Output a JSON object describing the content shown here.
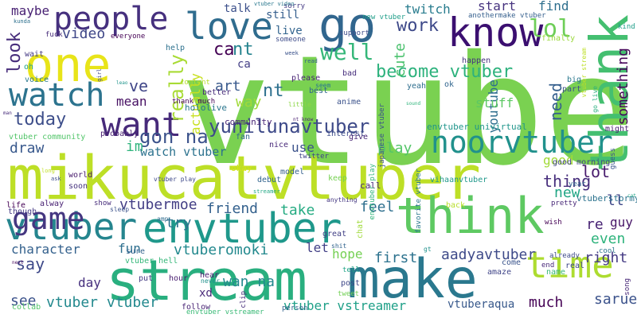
{
  "words": [
    {
      "text": "vtuber",
      "color": "#7ad151"
    },
    {
      "text": "mikucatvtuber",
      "color": "#bddf26"
    },
    {
      "text": "stream",
      "color": "#29af7f"
    },
    {
      "text": "make",
      "color": "#2a788e"
    },
    {
      "text": "think",
      "color": "#5ec962"
    },
    {
      "text": "envtuber",
      "color": "#1f988b"
    },
    {
      "text": "vtuber",
      "color": "#25858e"
    },
    {
      "text": "one",
      "color": "#e8e419"
    },
    {
      "text": "thank",
      "color": "#44bf70"
    },
    {
      "text": "go",
      "color": "#31668e"
    },
    {
      "text": "love",
      "color": "#2f6c8e"
    },
    {
      "text": "people",
      "color": "#46307e"
    },
    {
      "text": "know",
      "color": "#3b0f70"
    },
    {
      "text": "want",
      "color": "#472a7a"
    },
    {
      "text": "watch",
      "color": "#2c738e"
    },
    {
      "text": "time",
      "color": "#addc30"
    },
    {
      "text": "game",
      "color": "#453781"
    },
    {
      "text": "noorvtuber",
      "color": "#21918c"
    },
    {
      "text": "yunilunavtuber",
      "color": "#3e4a89"
    },
    {
      "text": "lol",
      "color": "#6ece58"
    },
    {
      "text": "work",
      "color": "#3e4989"
    },
    {
      "text": "well",
      "color": "#35b779"
    },
    {
      "text": "become vtuber",
      "color": "#2db27d"
    },
    {
      "text": "look",
      "color": "#472d7b"
    },
    {
      "text": "gon na",
      "color": "#3b528b"
    },
    {
      "text": "really",
      "color": "#a8db34"
    },
    {
      "text": "today",
      "color": "#3d4e8a"
    },
    {
      "text": "ca",
      "color": "#440154"
    },
    {
      "text": "nt",
      "color": "#25838e"
    },
    {
      "text": "nt",
      "color": "#2d708e"
    },
    {
      "text": "art",
      "color": "#38598c"
    },
    {
      "text": "way",
      "color": "#a0da39"
    },
    {
      "text": "ve",
      "color": "#404688"
    },
    {
      "text": "mean",
      "color": "#471063"
    },
    {
      "text": "actually",
      "color": "#c8e020"
    },
    {
      "text": "cute",
      "color": "#4ac16d"
    },
    {
      "text": "need",
      "color": "#355f8d"
    },
    {
      "text": "something",
      "color": "#450559"
    },
    {
      "text": "youtube",
      "color": "#2e6e8e"
    },
    {
      "text": "stuff",
      "color": "#5cc863"
    },
    {
      "text": "draw",
      "color": "#38588c"
    },
    {
      "text": "im",
      "color": "#2fb47c"
    },
    {
      "text": "watch vtuber",
      "color": "#2c728e"
    },
    {
      "text": "vtubermoe",
      "color": "#433e85"
    },
    {
      "text": "friend",
      "color": "#34618d"
    },
    {
      "text": "play",
      "color": "#54c568"
    },
    {
      "text": "use",
      "color": "#3b528b"
    },
    {
      "text": "thing",
      "color": "#472e7c"
    },
    {
      "text": "lot",
      "color": "#481b6d"
    },
    {
      "text": "new",
      "color": "#21a685"
    },
    {
      "text": "ll",
      "color": "#3f4889"
    },
    {
      "text": "good",
      "color": "#a2da37"
    },
    {
      "text": "even",
      "color": "#2eb37c"
    },
    {
      "text": "re",
      "color": "#482374"
    },
    {
      "text": "guy",
      "color": "#481668"
    },
    {
      "text": "right",
      "color": "#443a83"
    },
    {
      "text": "aadyavtuber",
      "color": "#3e4a89"
    },
    {
      "text": "first",
      "color": "#2c728e"
    },
    {
      "text": "hope",
      "color": "#75d054"
    },
    {
      "text": "let",
      "color": "#424086"
    },
    {
      "text": "vtuberomoki",
      "color": "#23898e"
    },
    {
      "text": "try",
      "color": "#2d708e"
    },
    {
      "text": "fun",
      "color": "#2e6f8e"
    },
    {
      "text": "character",
      "color": "#34618d"
    },
    {
      "text": "say",
      "color": "#3e4989"
    },
    {
      "text": "day",
      "color": "#46307e"
    },
    {
      "text": "see",
      "color": "#3b528b"
    },
    {
      "text": "vtuber vtuber",
      "color": "#23898e"
    },
    {
      "text": "wan na",
      "color": "#23898e"
    },
    {
      "text": "xd",
      "color": "#482878"
    },
    {
      "text": "vtuber vstreamer",
      "color": "#1fa088"
    },
    {
      "text": "much",
      "color": "#440154"
    },
    {
      "text": "saruei",
      "color": "#3b528b"
    },
    {
      "text": "vtuberaqua",
      "color": "#38598c"
    },
    {
      "text": "take",
      "color": "#25ab82"
    },
    {
      "text": "feel",
      "color": "#2e6f8e"
    },
    {
      "text": "video",
      "color": "#3f4788"
    },
    {
      "text": "maybe",
      "color": "#482173"
    },
    {
      "text": "start",
      "color": "#46337f"
    },
    {
      "text": "find",
      "color": "#2e6f8e"
    },
    {
      "text": "twitch",
      "color": "#287c8e"
    },
    {
      "text": "talk",
      "color": "#3c508b"
    },
    {
      "text": "still",
      "color": "#355e8d"
    },
    {
      "text": "live",
      "color": "#32648e"
    },
    {
      "text": "ca",
      "color": "#433e85"
    },
    {
      "text": "envtuber univirtual",
      "color": "#1f958b"
    },
    {
      "text": "vtuberstormy",
      "color": "#2c738e"
    },
    {
      "text": "hololive",
      "color": "#2a768e"
    },
    {
      "text": "community",
      "color": "#482576"
    },
    {
      "text": "vtuber community",
      "color": "#52c569"
    },
    {
      "text": "vtuber hell",
      "color": "#35b779"
    },
    {
      "text": "please",
      "color": "#482475"
    },
    {
      "text": "best",
      "color": "#31678e"
    },
    {
      "text": "anime",
      "color": "#3b528b"
    },
    {
      "text": "interest",
      "color": "#3d4d8a"
    },
    {
      "text": "twitter",
      "color": "#414487"
    },
    {
      "text": "probably",
      "color": "#481f70"
    },
    {
      "text": "model",
      "color": "#355f8d"
    },
    {
      "text": "debut",
      "color": "#32648e"
    },
    {
      "text": "okay",
      "color": "#d5e21a"
    },
    {
      "text": "call",
      "color": "#482677"
    },
    {
      "text": "great",
      "color": "#424086"
    },
    {
      "text": "fuck",
      "color": "#472c7a"
    },
    {
      "text": "everyone",
      "color": "#440154"
    },
    {
      "text": "wait",
      "color": "#443983"
    },
    {
      "text": "oh",
      "color": "#1fa088"
    },
    {
      "text": "voice",
      "color": "#2a788e"
    },
    {
      "text": "help",
      "color": "#2d718e"
    },
    {
      "text": "better",
      "color": "#472c7a"
    },
    {
      "text": "content",
      "color": "#b5de2b"
    },
    {
      "text": "thank much",
      "color": "#440154"
    },
    {
      "text": "fan",
      "color": "#30698e"
    },
    {
      "text": "nice",
      "color": "#482979"
    },
    {
      "text": "give",
      "color": "#482576"
    },
    {
      "text": "sorry",
      "color": "#443983"
    },
    {
      "text": "support",
      "color": "#3e4c8a"
    },
    {
      "text": "someone",
      "color": "#3e4c8a"
    },
    {
      "text": "new vtuber",
      "color": "#1f9e89"
    },
    {
      "text": "anothermake vtuber",
      "color": "#355f8d"
    },
    {
      "text": "finally",
      "color": "#9bd93c"
    },
    {
      "text": "happen",
      "color": "#46337f"
    },
    {
      "text": "big",
      "color": "#2a788e"
    },
    {
      "text": "part",
      "color": "#3d4e8a"
    },
    {
      "text": "yeah",
      "color": "#2e6e8e"
    },
    {
      "text": "ok",
      "color": "#31668e"
    },
    {
      "text": "bad",
      "color": "#472f7d"
    },
    {
      "text": "japanese vtuber",
      "color": "#3b528b"
    },
    {
      "text": "favorite vtuber",
      "color": "#2a778e"
    },
    {
      "text": "vihaanvtuber",
      "color": "#1f988b"
    },
    {
      "text": "envtuber play",
      "color": "#31b57b"
    },
    {
      "text": "hour",
      "color": "#481d6f"
    },
    {
      "text": "put",
      "color": "#443a83"
    },
    {
      "text": "follow",
      "color": "#482374"
    },
    {
      "text": "envtuber vstreamer",
      "color": "#3aba76"
    },
    {
      "text": "person",
      "color": "#33638d"
    },
    {
      "text": "post",
      "color": "#3f4889"
    },
    {
      "text": "tweet",
      "color": "#73d056"
    },
    {
      "text": "amaze",
      "color": "#404588"
    },
    {
      "text": "name",
      "color": "#38b977"
    },
    {
      "text": "come",
      "color": "#3a548c"
    },
    {
      "text": "end",
      "color": "#482878"
    },
    {
      "text": "real",
      "color": "#3f4889"
    },
    {
      "text": "already",
      "color": "#3e4989"
    },
    {
      "text": "might",
      "color": "#482071"
    },
    {
      "text": "guess",
      "color": "#3a548c"
    },
    {
      "text": "year",
      "color": "#31668e"
    },
    {
      "text": "song",
      "color": "#482878"
    },
    {
      "text": "collab",
      "color": "#52c569"
    },
    {
      "text": "life",
      "color": "#440154"
    },
    {
      "text": "though",
      "color": "#443983"
    },
    {
      "text": "alway",
      "color": "#482173"
    },
    {
      "text": "world",
      "color": "#481a6c"
    },
    {
      "text": "soon",
      "color": "#46327e"
    },
    {
      "text": "show",
      "color": "#472d7b"
    },
    {
      "text": "sure",
      "color": "#33638d"
    },
    {
      "text": "back",
      "color": "#b8de29"
    },
    {
      "text": "kind",
      "color": "#1f9e89"
    },
    {
      "text": "good morning",
      "color": "#414487"
    },
    {
      "text": "pretty",
      "color": "#482878"
    },
    {
      "text": "cool",
      "color": "#2b758e"
    },
    {
      "text": "wish",
      "color": "#440154"
    },
    {
      "text": "clip",
      "color": "#472d7b"
    },
    {
      "text": "never",
      "color": "#21918c"
    },
    {
      "text": "hear",
      "color": "#481d6f"
    },
    {
      "text": "keep",
      "color": "#77d153"
    },
    {
      "text": "chat",
      "color": "#9fda3a"
    },
    {
      "text": "tell",
      "color": "#20a386"
    },
    {
      "text": "sleep",
      "color": "#3b528b"
    },
    {
      "text": "anything",
      "color": "#453882"
    },
    {
      "text": "seem",
      "color": "#2a788e"
    },
    {
      "text": "week",
      "color": "#3b528b"
    },
    {
      "text": "little",
      "color": "#8bd646"
    },
    {
      "text": "read",
      "color": "#355f8d"
    },
    {
      "text": "vtuber video",
      "color": "#2a788e"
    },
    {
      "text": "streamer",
      "color": "#22a884"
    },
    {
      "text": "amp",
      "color": "#2f6b8e"
    },
    {
      "text": "shit",
      "color": "#32648e"
    },
    {
      "text": "vtuber stream",
      "color": "#bddf26"
    },
    {
      "text": "go live",
      "color": "#29af7f"
    },
    {
      "text": "vtuber play",
      "color": "#3e4989"
    },
    {
      "text": "kunda",
      "color": "#2d708e"
    },
    {
      "text": "leao",
      "color": "#1f948c"
    },
    {
      "text": "nt know",
      "color": "#482071"
    },
    {
      "text": "sound",
      "color": "#2fb47c"
    },
    {
      "text": "gt",
      "color": "#21918c"
    },
    {
      "text": "next",
      "color": "#460a5d"
    },
    {
      "text": "man",
      "color": "#472c7a"
    },
    {
      "text": "long",
      "color": "#c0df25"
    },
    {
      "text": "ask",
      "color": "#3d4d8a"
    },
    {
      "text": "girl",
      "color": "#3e4989"
    },
    {
      "text": "cat",
      "color": "#20a386"
    }
  ]
}
